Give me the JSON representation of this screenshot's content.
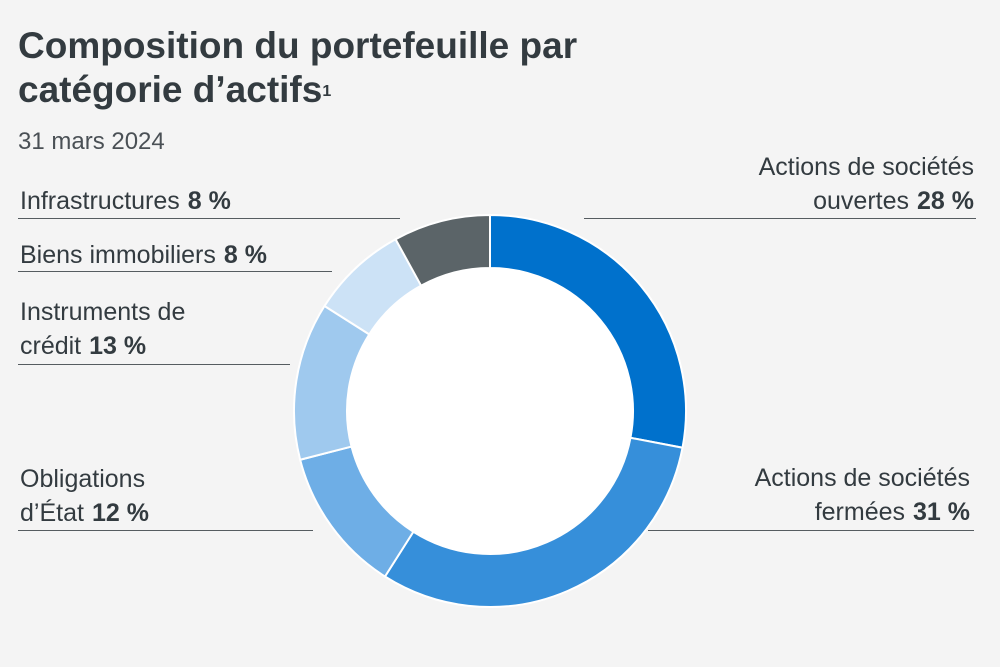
{
  "title": "Composition du portefeuille par catégorie d’actifs",
  "title_footnote": "1",
  "subtitle": "31 mars 2024",
  "chart_data": {
    "type": "pie",
    "donut": true,
    "title": "Composition du portefeuille par catégorie d’actifs",
    "subtitle": "31 mars 2024",
    "slices": [
      {
        "label": "Actions de sociétés ouvertes",
        "value": 28,
        "display": "28 %",
        "color": "#0071cc"
      },
      {
        "label": "Actions de sociétés fermées",
        "value": 31,
        "display": "31 %",
        "color": "#368fda"
      },
      {
        "label": "Obligations d’État",
        "value": 12,
        "display": "12 %",
        "color": "#6eaee6"
      },
      {
        "label": "Instruments de crédit",
        "value": 13,
        "display": "13 %",
        "color": "#9fc9ee"
      },
      {
        "label": "Biens immobiliers",
        "value": 8,
        "display": "8 %",
        "color": "#cce2f6"
      },
      {
        "label": "Infrastructures",
        "value": 8,
        "display": "8 %",
        "color": "#5b6468"
      }
    ]
  },
  "labels": {
    "public_equity_line1": "Actions de sociétés",
    "public_equity_line2": "ouvertes",
    "private_equity_line1": "Actions de sociétés",
    "private_equity_line2": "fermées",
    "gov_bonds_line1": "Obligations",
    "gov_bonds_line2": "d’État",
    "credit_line1": "Instruments de",
    "credit_line2": "crédit",
    "real_estate": "Biens immobiliers",
    "infrastructure": "Infrastructures"
  }
}
